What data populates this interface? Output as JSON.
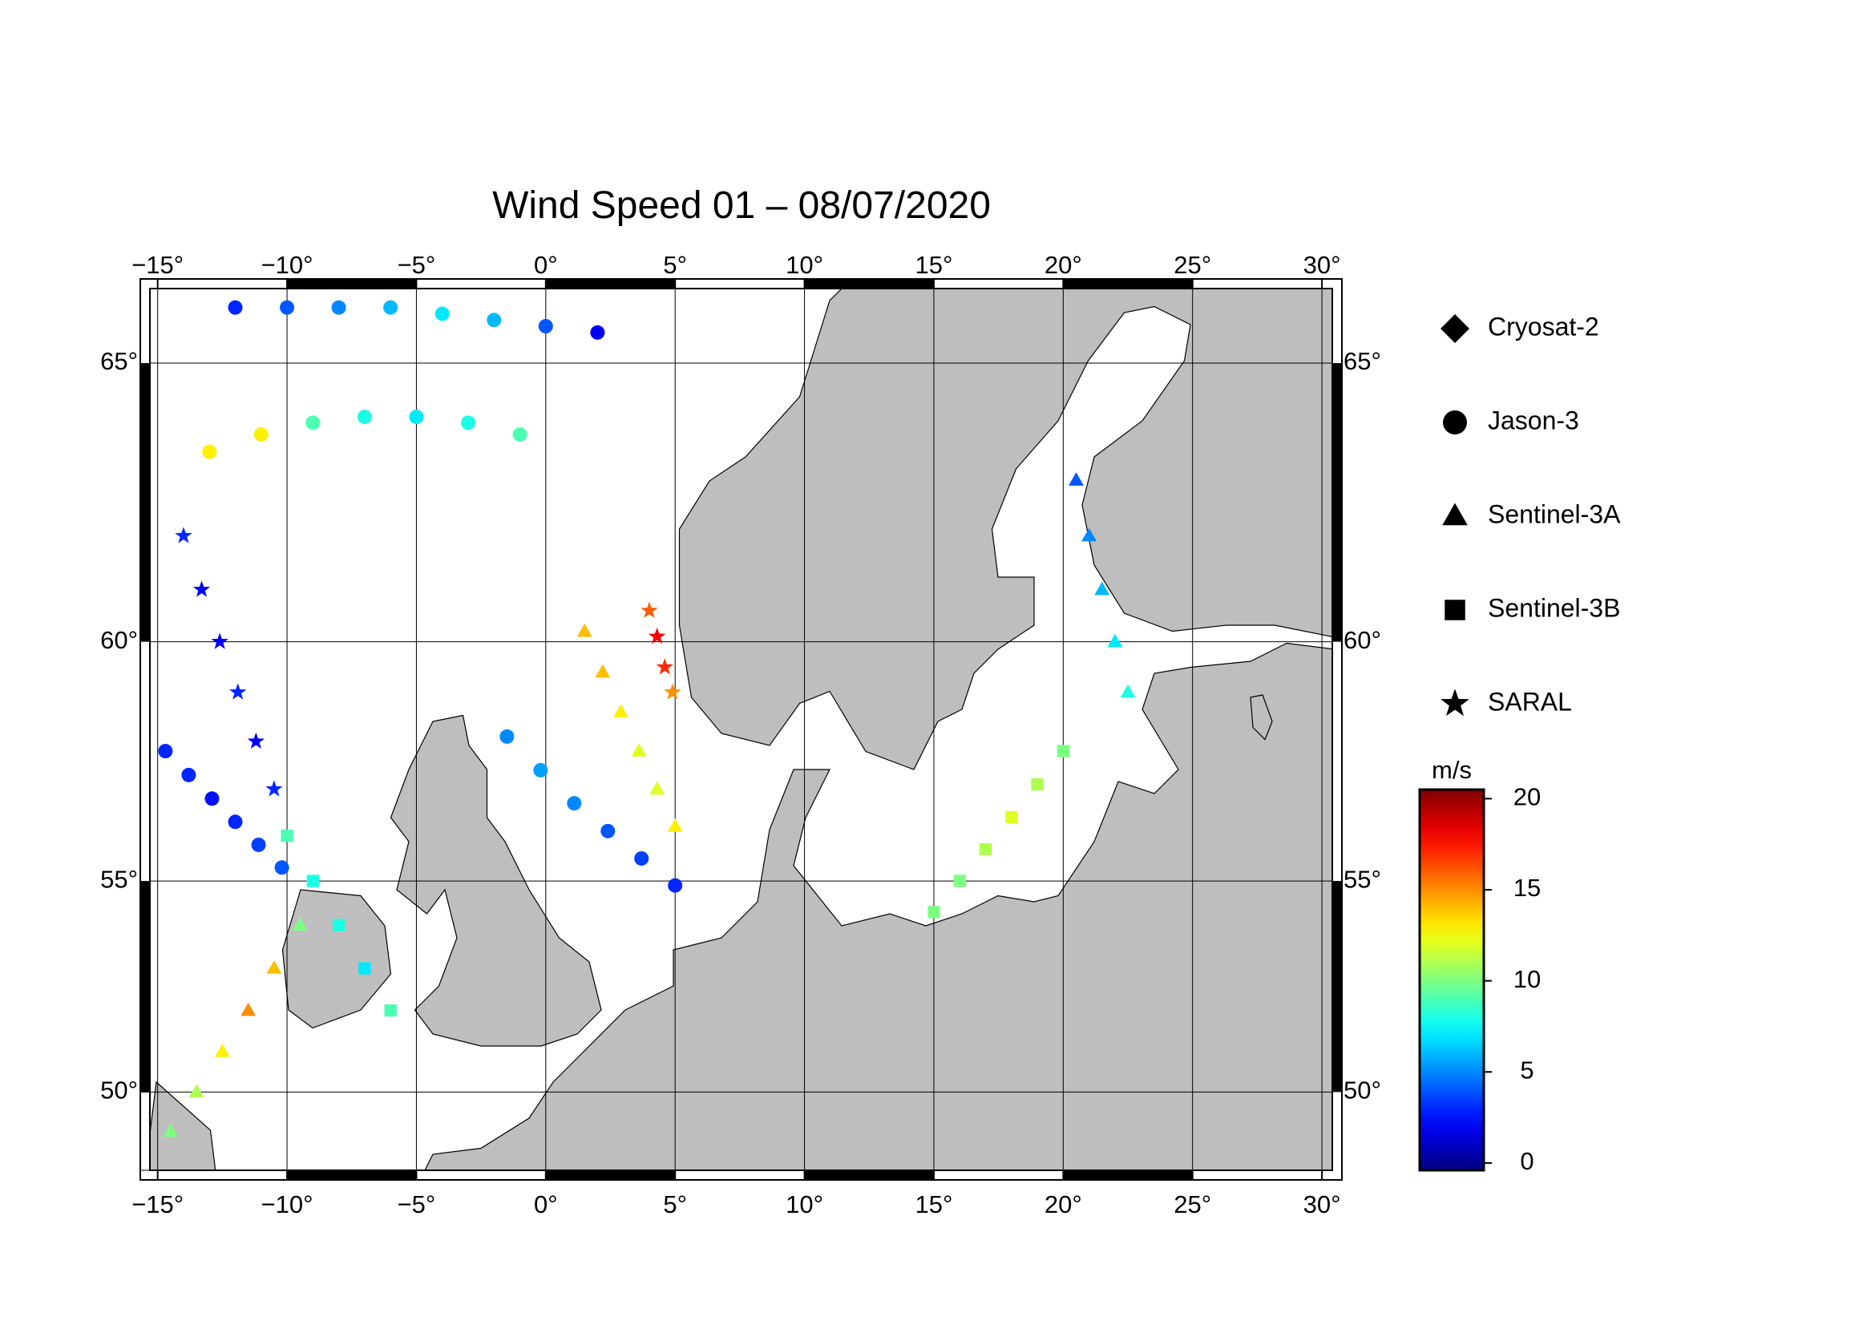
{
  "chart_data": {
    "type": "scatter",
    "title": "Wind Speed 01 – 08/07/2020",
    "projection": "mercator",
    "xlim": [
      -15.3,
      30.4
    ],
    "ylim": [
      48.0,
      66.2
    ],
    "xticks": [
      {
        "value": -15,
        "label": "−15°"
      },
      {
        "value": -10,
        "label": "−10°"
      },
      {
        "value": -5,
        "label": "−5°"
      },
      {
        "value": 0,
        "label": "0°"
      },
      {
        "value": 5,
        "label": "5°"
      },
      {
        "value": 10,
        "label": "10°"
      },
      {
        "value": 15,
        "label": "15°"
      },
      {
        "value": 20,
        "label": "20°"
      },
      {
        "value": 25,
        "label": "25°"
      },
      {
        "value": 30,
        "label": "30°"
      }
    ],
    "yticks": [
      {
        "value": 50,
        "label": "50°"
      },
      {
        "value": 55,
        "label": "55°"
      },
      {
        "value": 60,
        "label": "60°"
      },
      {
        "value": 65,
        "label": "65°"
      }
    ],
    "grid": true,
    "colormap": "jet",
    "colorbar": {
      "label": "m/s",
      "lim": [
        -0.4,
        20.5
      ],
      "ticks": [
        0,
        5,
        10,
        15,
        20
      ]
    },
    "series": [
      {
        "name": "Cryosat-2",
        "marker": "diamond",
        "x": [],
        "y": [],
        "values": []
      },
      {
        "name": "Jason-3",
        "marker": "circle",
        "x": [
          -14.7,
          -13.8,
          -12.9,
          -12,
          -11.1,
          -10.2,
          -1.5,
          -0.2,
          1.1,
          2.4,
          3.7,
          5,
          -13,
          -11,
          -9,
          -7,
          -5,
          -3,
          -1,
          -12,
          -10,
          -8,
          -6,
          -4,
          -2,
          0,
          2
        ],
        "y": [
          57.8,
          57.3,
          56.8,
          56.3,
          55.8,
          55.3,
          58.1,
          57.4,
          56.7,
          56.1,
          55.5,
          54.9,
          63.5,
          63.8,
          64,
          64.1,
          64.1,
          64,
          63.8,
          65.9,
          65.9,
          65.9,
          65.9,
          65.8,
          65.7,
          65.6,
          65.5
        ],
        "values": [
          3,
          3,
          2.5,
          3,
          3.5,
          4,
          5,
          5.5,
          5,
          4,
          3.5,
          3,
          13,
          13,
          9,
          8,
          7,
          8,
          9,
          3,
          4,
          5,
          6,
          7,
          6,
          4,
          2
        ]
      },
      {
        "name": "Sentinel-3A",
        "marker": "triangle",
        "x": [
          -14.5,
          -13.5,
          -12.5,
          -11.5,
          -10.5,
          -9.5,
          1.5,
          2.2,
          2.9,
          3.6,
          4.3,
          5,
          20.5,
          21,
          21.5,
          22,
          22.5
        ],
        "y": [
          49,
          50,
          51,
          52,
          53,
          54,
          60.2,
          59.4,
          58.6,
          57.8,
          57,
          56.2,
          63,
          62,
          61,
          60,
          59
        ],
        "values": [
          10,
          11,
          13,
          15,
          14,
          10,
          14,
          14,
          13,
          12,
          12,
          13,
          4,
          5,
          6,
          7,
          8
        ]
      },
      {
        "name": "Sentinel-3B",
        "marker": "square",
        "x": [
          -10,
          -9,
          -8,
          -7,
          -6,
          15,
          16,
          17,
          18,
          19,
          20
        ],
        "y": [
          56,
          55,
          54,
          53,
          52,
          54.3,
          55,
          55.7,
          56.4,
          57.1,
          57.8
        ],
        "values": [
          9,
          8,
          8,
          7,
          9,
          10,
          10,
          11,
          12,
          11,
          10
        ]
      },
      {
        "name": "SARAL",
        "marker": "star",
        "x": [
          -14,
          -13.3,
          -12.6,
          -11.9,
          -11.2,
          -10.5,
          4,
          4.3,
          4.6,
          4.9
        ],
        "y": [
          62,
          61,
          60,
          59,
          58,
          57,
          60.6,
          60.1,
          59.5,
          59
        ],
        "values": [
          3,
          2,
          2,
          3,
          2,
          3,
          16,
          18,
          17,
          15
        ]
      }
    ]
  }
}
